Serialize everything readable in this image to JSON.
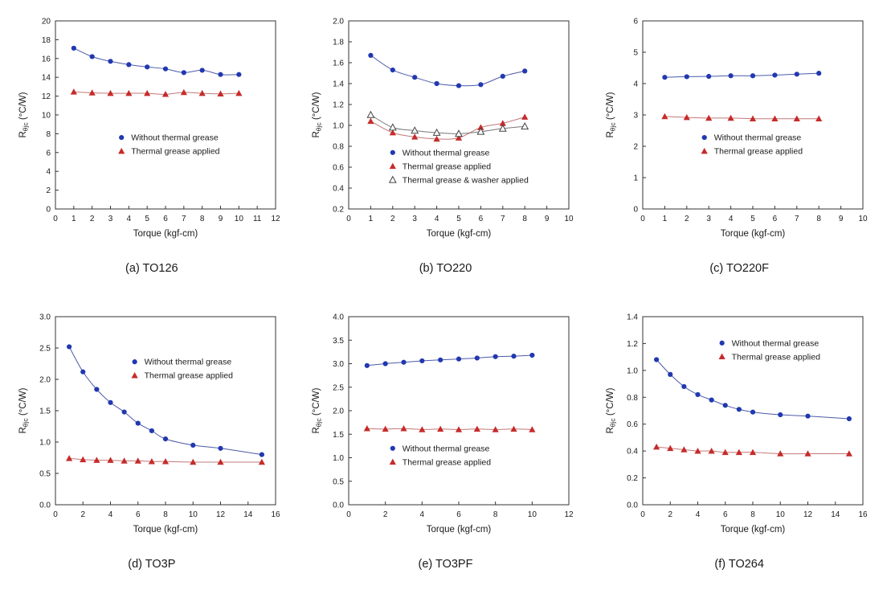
{
  "page": {
    "background": "#ffffff",
    "axis_color": "#333333"
  },
  "chart_data": [
    {
      "id": "a",
      "type": "scatter",
      "caption": "(a) TO126",
      "xlabel": "Torque (kgf-cm)",
      "ylabel": {
        "base": "R",
        "sub": "θjc",
        "rest": " (°C/W)"
      },
      "xlim": [
        0,
        12
      ],
      "ylim": [
        0,
        20
      ],
      "xticks": [
        0,
        1,
        2,
        3,
        4,
        5,
        6,
        7,
        8,
        9,
        10,
        11,
        12
      ],
      "xtick_labels": [
        "0",
        "1",
        "2",
        "3",
        "4",
        "5",
        "6",
        "7",
        "8",
        "9",
        "10",
        "11",
        "12"
      ],
      "yticks": [
        0,
        2,
        4,
        6,
        8,
        10,
        12,
        14,
        16,
        18,
        20
      ],
      "ytick_labels": [
        "0",
        "2",
        "4",
        "6",
        "8",
        "10",
        "12",
        "14",
        "16",
        "18",
        "20"
      ],
      "legend": {
        "x": 0.3,
        "y": 0.62
      },
      "series": [
        {
          "name": "Without thermal grease",
          "marker": "circle",
          "color": "#2138b0",
          "line_color": "#4c5aa8",
          "x": [
            1,
            2,
            3,
            4,
            5,
            6,
            7,
            8,
            9,
            10
          ],
          "y": [
            17.1,
            16.2,
            15.7,
            15.35,
            15.1,
            14.9,
            14.5,
            14.75,
            14.3,
            14.3
          ]
        },
        {
          "name": "Thermal grease applied",
          "marker": "triangle",
          "color": "#c62b2b",
          "line_color": "#c47878",
          "x": [
            1,
            2,
            3,
            4,
            5,
            6,
            7,
            8,
            9,
            10
          ],
          "y": [
            12.45,
            12.35,
            12.3,
            12.3,
            12.3,
            12.2,
            12.4,
            12.3,
            12.25,
            12.3
          ]
        }
      ]
    },
    {
      "id": "b",
      "type": "scatter",
      "caption": "(b) TO220",
      "xlabel": "Torque (kgf-cm)",
      "ylabel": {
        "base": "R",
        "sub": "θjc",
        "rest": " (°C/W)"
      },
      "xlim": [
        0,
        10
      ],
      "ylim": [
        0.2,
        2.0
      ],
      "xticks": [
        0,
        1,
        2,
        3,
        4,
        5,
        6,
        7,
        8,
        9,
        10
      ],
      "xtick_labels": [
        "0",
        "1",
        "2",
        "3",
        "4",
        "5",
        "6",
        "7",
        "8",
        "9",
        "10"
      ],
      "yticks": [
        0.2,
        0.4,
        0.6,
        0.8,
        1.0,
        1.2,
        1.4,
        1.6,
        1.8,
        2.0
      ],
      "ytick_labels": [
        "0.2",
        "0.4",
        "0.6",
        "0.8",
        "1.0",
        "1.2",
        "1.4",
        "1.6",
        "1.8",
        "2.0"
      ],
      "legend": {
        "x": 0.2,
        "y": 0.7
      },
      "series": [
        {
          "name": "Without thermal grease",
          "marker": "circle",
          "color": "#2138b0",
          "line_color": "#4c5aa8",
          "x": [
            1,
            2,
            3,
            4,
            5,
            6,
            7,
            8
          ],
          "y": [
            1.67,
            1.53,
            1.46,
            1.4,
            1.38,
            1.39,
            1.47,
            1.52
          ]
        },
        {
          "name": "Thermal grease applied",
          "marker": "triangle",
          "color": "#c62b2b",
          "line_color": "#c47878",
          "x": [
            1,
            2,
            3,
            4,
            5,
            6,
            7,
            8
          ],
          "y": [
            1.04,
            0.93,
            0.89,
            0.87,
            0.88,
            0.98,
            1.02,
            1.08
          ]
        },
        {
          "name": "Thermal grease & washer applied",
          "marker": "triangle-open",
          "color": "#444444",
          "line_color": "#777777",
          "x": [
            1,
            2,
            3,
            4,
            5,
            6,
            7,
            8
          ],
          "y": [
            1.1,
            0.98,
            0.95,
            0.93,
            0.92,
            0.94,
            0.97,
            0.99
          ]
        }
      ]
    },
    {
      "id": "c",
      "type": "scatter",
      "caption": "(c) TO220F",
      "xlabel": "Torque (kgf-cm)",
      "ylabel": {
        "base": "R",
        "sub": "θjc",
        "rest": " (°C/W)"
      },
      "xlim": [
        0,
        10
      ],
      "ylim": [
        0,
        6
      ],
      "xticks": [
        0,
        1,
        2,
        3,
        4,
        5,
        6,
        7,
        8,
        9,
        10
      ],
      "xtick_labels": [
        "0",
        "1",
        "2",
        "3",
        "4",
        "5",
        "6",
        "7",
        "8",
        "9",
        "10"
      ],
      "yticks": [
        0,
        1,
        2,
        3,
        4,
        5,
        6
      ],
      "ytick_labels": [
        "0",
        "1",
        "2",
        "3",
        "4",
        "5",
        "6"
      ],
      "legend": {
        "x": 0.28,
        "y": 0.62
      },
      "series": [
        {
          "name": "Without thermal grease",
          "marker": "circle",
          "color": "#2138b0",
          "line_color": "#4c5aa8",
          "x": [
            1,
            2,
            3,
            4,
            5,
            6,
            7,
            8
          ],
          "y": [
            4.2,
            4.22,
            4.23,
            4.25,
            4.25,
            4.27,
            4.3,
            4.33
          ]
        },
        {
          "name": "Thermal grease applied",
          "marker": "triangle",
          "color": "#c62b2b",
          "line_color": "#c47878",
          "x": [
            1,
            2,
            3,
            4,
            5,
            6,
            7,
            8
          ],
          "y": [
            2.95,
            2.92,
            2.9,
            2.9,
            2.88,
            2.88,
            2.88,
            2.88
          ]
        }
      ]
    },
    {
      "id": "d",
      "type": "scatter",
      "caption": "(d) TO3P",
      "xlabel": "Torque (kgf-cm)",
      "ylabel": {
        "base": "R",
        "sub": "θjc",
        "rest": " (°C/W)"
      },
      "xlim": [
        0,
        16
      ],
      "ylim": [
        0,
        3.0
      ],
      "xticks": [
        0,
        2,
        4,
        6,
        8,
        10,
        12,
        14,
        16
      ],
      "xtick_labels": [
        "0",
        "2",
        "4",
        "6",
        "8",
        "10",
        "12",
        "14",
        "16"
      ],
      "yticks": [
        0,
        0.5,
        1.0,
        1.5,
        2.0,
        2.5,
        3.0
      ],
      "ytick_labels": [
        "0.0",
        "0.5",
        "1.0",
        "1.5",
        "2.0",
        "2.5",
        "3.0"
      ],
      "legend": {
        "x": 0.36,
        "y": 0.24
      },
      "series": [
        {
          "name": "Without thermal grease",
          "marker": "circle",
          "color": "#2138b0",
          "line_color": "#4c5aa8",
          "x": [
            1,
            2,
            3,
            4,
            5,
            6,
            7,
            8,
            10,
            12,
            15
          ],
          "y": [
            2.52,
            2.12,
            1.84,
            1.63,
            1.48,
            1.3,
            1.18,
            1.05,
            0.95,
            0.9,
            0.8
          ]
        },
        {
          "name": "Thermal grease applied",
          "marker": "triangle",
          "color": "#c62b2b",
          "line_color": "#c47878",
          "x": [
            1,
            2,
            3,
            4,
            5,
            6,
            7,
            8,
            10,
            12,
            15
          ],
          "y": [
            0.74,
            0.72,
            0.71,
            0.71,
            0.7,
            0.7,
            0.69,
            0.69,
            0.68,
            0.68,
            0.68
          ]
        }
      ]
    },
    {
      "id": "e",
      "type": "scatter",
      "caption": "(e) TO3PF",
      "xlabel": "Torque (kgf-cm)",
      "ylabel": {
        "base": "R",
        "sub": "θjc",
        "rest": " (°C/W)"
      },
      "xlim": [
        0,
        12
      ],
      "ylim": [
        0,
        4.0
      ],
      "xticks": [
        0,
        2,
        4,
        6,
        8,
        10,
        12
      ],
      "xtick_labels": [
        "0",
        "2",
        "4",
        "6",
        "8",
        "10",
        "12"
      ],
      "yticks": [
        0,
        0.5,
        1.0,
        1.5,
        2.0,
        2.5,
        3.0,
        3.5,
        4.0
      ],
      "ytick_labels": [
        "0.0",
        "0.5",
        "1.0",
        "1.5",
        "2.0",
        "2.5",
        "3.0",
        "3.5",
        "4.0"
      ],
      "legend": {
        "x": 0.2,
        "y": 0.7
      },
      "series": [
        {
          "name": "Without thermal grease",
          "marker": "circle",
          "color": "#2138b0",
          "line_color": "#4c5aa8",
          "x": [
            1,
            2,
            3,
            4,
            5,
            6,
            7,
            8,
            9,
            10
          ],
          "y": [
            2.96,
            3.0,
            3.03,
            3.06,
            3.08,
            3.1,
            3.12,
            3.15,
            3.16,
            3.18
          ]
        },
        {
          "name": "Thermal grease applied",
          "marker": "triangle",
          "color": "#c62b2b",
          "line_color": "#c47878",
          "x": [
            1,
            2,
            3,
            4,
            5,
            6,
            7,
            8,
            9,
            10
          ],
          "y": [
            1.62,
            1.61,
            1.62,
            1.6,
            1.61,
            1.6,
            1.61,
            1.6,
            1.61,
            1.6
          ]
        }
      ]
    },
    {
      "id": "f",
      "type": "scatter",
      "caption": "(f) TO264",
      "xlabel": "Torque (kgf-cm)",
      "ylabel": {
        "base": "R",
        "sub": "θjc",
        "rest": " (°C/W)"
      },
      "xlim": [
        0,
        16
      ],
      "ylim": [
        0,
        1.4
      ],
      "xticks": [
        0,
        2,
        4,
        6,
        8,
        10,
        12,
        14,
        16
      ],
      "xtick_labels": [
        "0",
        "2",
        "4",
        "6",
        "8",
        "10",
        "12",
        "14",
        "16"
      ],
      "yticks": [
        0,
        0.2,
        0.4,
        0.6,
        0.8,
        1.0,
        1.2,
        1.4
      ],
      "ytick_labels": [
        "0.0",
        "0.2",
        "0.4",
        "0.6",
        "0.8",
        "1.0",
        "1.2",
        "1.4"
      ],
      "legend": {
        "x": 0.36,
        "y": 0.14
      },
      "series": [
        {
          "name": "Without thermal grease",
          "marker": "circle",
          "color": "#2138b0",
          "line_color": "#4c5aa8",
          "x": [
            1,
            2,
            3,
            4,
            5,
            6,
            7,
            8,
            10,
            12,
            15
          ],
          "y": [
            1.08,
            0.97,
            0.88,
            0.82,
            0.78,
            0.74,
            0.71,
            0.69,
            0.67,
            0.66,
            0.64
          ]
        },
        {
          "name": "Thermal grease applied",
          "marker": "triangle",
          "color": "#c62b2b",
          "line_color": "#c47878",
          "x": [
            1,
            2,
            3,
            4,
            5,
            6,
            7,
            8,
            10,
            12,
            15
          ],
          "y": [
            0.43,
            0.42,
            0.41,
            0.4,
            0.4,
            0.39,
            0.39,
            0.39,
            0.38,
            0.38,
            0.38
          ]
        }
      ]
    }
  ]
}
